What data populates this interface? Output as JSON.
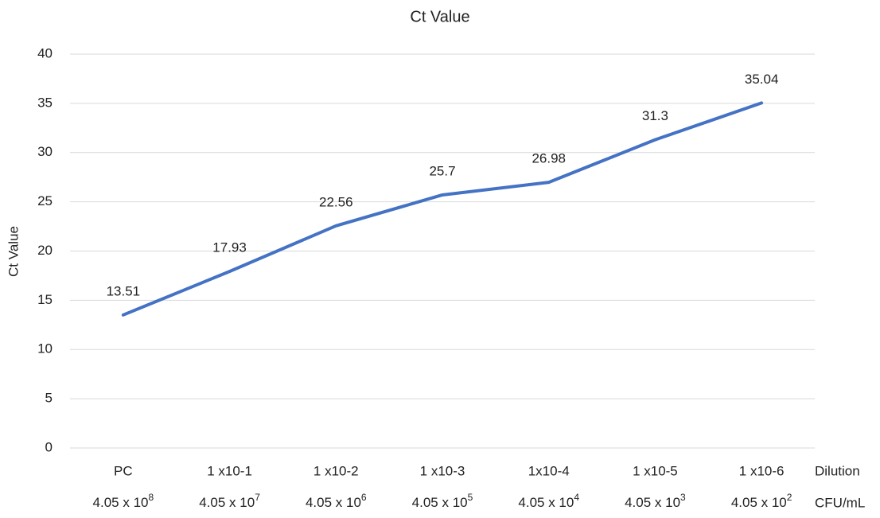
{
  "chart_data": {
    "type": "line",
    "title": "Ct Value",
    "y_label": "Ct Value",
    "categories": [
      "PC",
      "1 x10-1",
      "1 x10-2",
      "1 x10-3",
      "1x10-4",
      "1 x10-5",
      "1 x10-6"
    ],
    "categories_cfu": [
      {
        "text": "4.05 x 10",
        "superscript": "8"
      },
      {
        "text": "4.05 x 10",
        "superscript": "7"
      },
      {
        "text": "4.05 x 10",
        "superscript": "6"
      },
      {
        "text": "4.05 x 10",
        "superscript": "5"
      },
      {
        "text": "4.05 x 10",
        "superscript": "4"
      },
      {
        "text": "4.05 x 10",
        "superscript": "3"
      },
      {
        "text": "4.05 x 10",
        "superscript": "2"
      }
    ],
    "row_labels": [
      "Dilution",
      "CFU/mL"
    ],
    "values": [
      13.51,
      17.93,
      22.56,
      25.7,
      26.98,
      31.3,
      35.04
    ],
    "color": "#4472c4",
    "ylim": [
      0,
      40
    ],
    "yticks": [
      0,
      5,
      10,
      15,
      20,
      25,
      30,
      35,
      40
    ],
    "grid": true
  }
}
